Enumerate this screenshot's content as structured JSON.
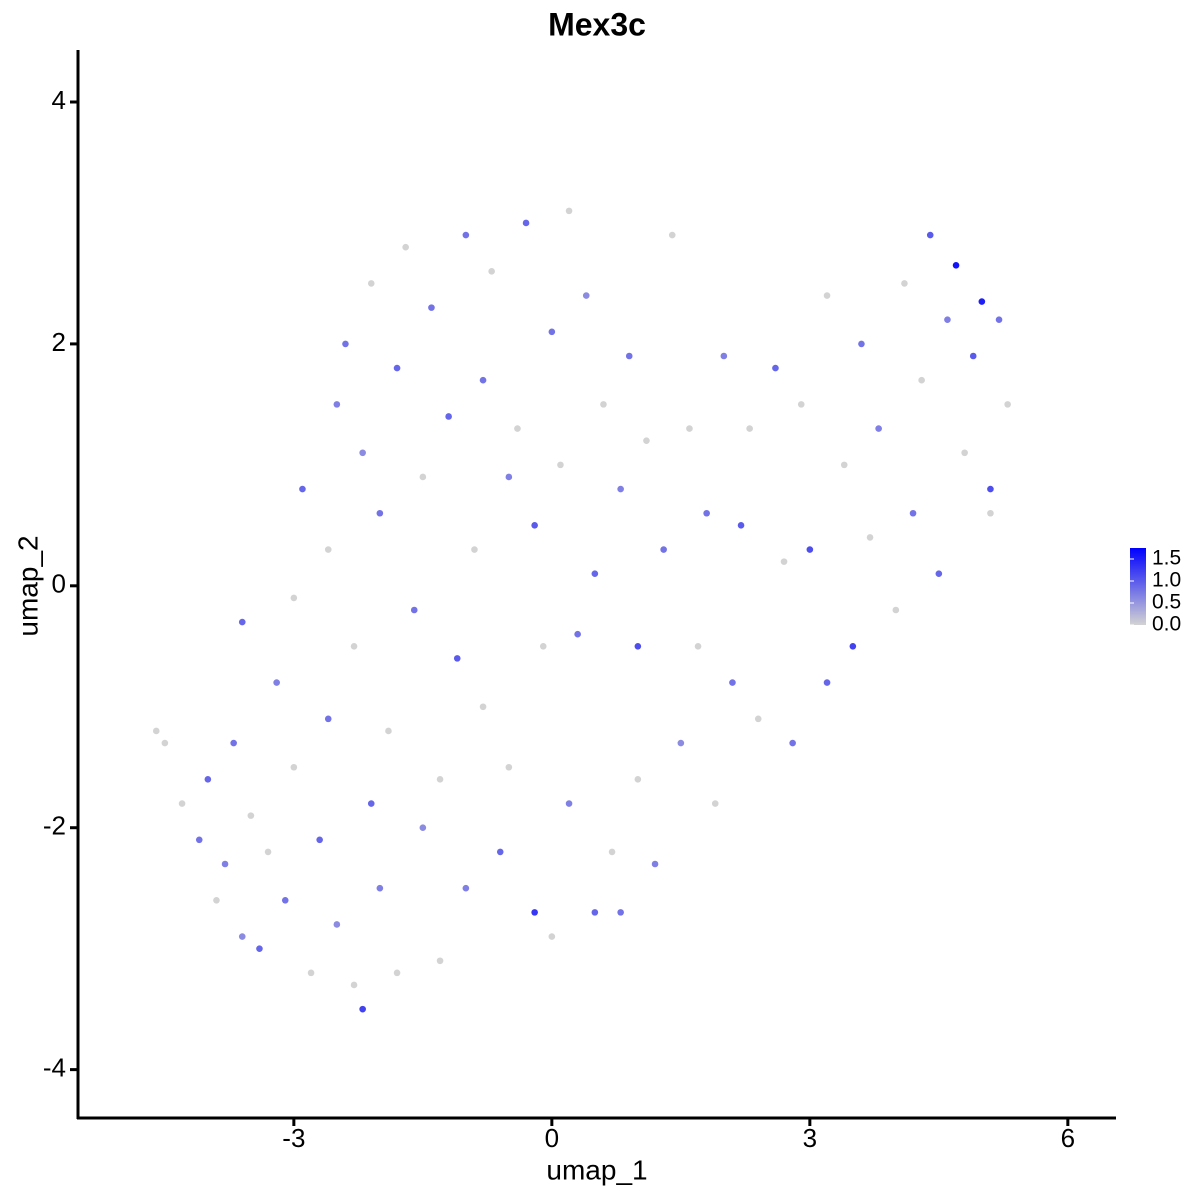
{
  "chart_data": {
    "type": "scatter",
    "title": "Mex3c",
    "x_label": "umap_1",
    "y_label": "umap_2",
    "xlim": [
      -5.51,
      6.56
    ],
    "ylim": [
      -4.4,
      4.43
    ],
    "xticks": [
      -3,
      0,
      3,
      6
    ],
    "yticks": [
      -4,
      -2,
      0,
      2,
      4
    ],
    "colorbar": {
      "lim": [
        0,
        1.75
      ],
      "ticks": [
        {
          "value": 0,
          "label": "0.0"
        },
        {
          "value": 0.5,
          "label": "0.5"
        },
        {
          "value": 1,
          "label": "1.0"
        },
        {
          "value": 1.5,
          "label": "1.5"
        }
      ],
      "colors": [
        "#d3d3d3",
        "#0000ff"
      ]
    },
    "x": [
      -4.6,
      -4.5,
      -4.3,
      -4.1,
      -4.0,
      -3.9,
      -3.8,
      -3.7,
      -3.6,
      -3.6,
      -3.5,
      -3.4,
      -3.3,
      -3.2,
      -3.1,
      -3.0,
      -3.0,
      -2.9,
      -2.8,
      -2.7,
      -2.6,
      -2.6,
      -2.5,
      -2.5,
      -2.4,
      -2.3,
      -2.3,
      -2.2,
      -2.2,
      -2.1,
      -2.1,
      -2.0,
      -2.0,
      -1.9,
      -1.8,
      -1.8,
      -1.7,
      -1.6,
      -1.5,
      -1.5,
      -1.4,
      -1.3,
      -1.3,
      -1.2,
      -1.1,
      -1.0,
      -1.0,
      -0.9,
      -0.8,
      -0.8,
      -0.7,
      -0.6,
      -0.5,
      -0.5,
      -0.4,
      -0.3,
      -0.2,
      -0.2,
      -0.1,
      0.0,
      0.0,
      0.1,
      0.2,
      0.2,
      0.3,
      0.4,
      0.5,
      0.5,
      0.6,
      0.7,
      0.8,
      0.8,
      0.9,
      1.0,
      1.0,
      1.1,
      1.2,
      1.3,
      1.4,
      1.5,
      1.6,
      1.7,
      1.8,
      1.9,
      2.0,
      2.1,
      2.2,
      2.3,
      2.4,
      2.6,
      2.7,
      2.8,
      2.9,
      3.0,
      3.2,
      3.2,
      3.4,
      3.5,
      3.6,
      3.7,
      3.8,
      4.0,
      4.1,
      4.2,
      4.3,
      4.4,
      4.5,
      4.6,
      4.7,
      4.8,
      4.9,
      5.0,
      5.1,
      5.2,
      5.3,
      5.1
    ],
    "y": [
      -1.2,
      -1.3,
      -1.8,
      -2.1,
      -1.6,
      -2.6,
      -2.3,
      -1.3,
      -0.3,
      -2.9,
      -1.9,
      -3.0,
      -2.2,
      -0.8,
      -2.6,
      -1.5,
      -0.1,
      0.8,
      -3.2,
      -2.1,
      -1.1,
      0.3,
      1.5,
      -2.8,
      2.0,
      -0.5,
      -3.3,
      -3.5,
      1.1,
      -1.8,
      2.5,
      0.6,
      -2.5,
      -1.2,
      1.8,
      -3.2,
      2.8,
      -0.2,
      -2.0,
      0.9,
      2.3,
      -1.6,
      -3.1,
      1.4,
      -0.6,
      2.9,
      -2.5,
      0.3,
      1.7,
      -1.0,
      2.6,
      -2.2,
      0.9,
      -1.5,
      1.3,
      3.0,
      -2.7,
      0.5,
      -0.5,
      2.1,
      -2.9,
      1.0,
      -1.8,
      3.1,
      -0.4,
      2.4,
      -2.7,
      0.1,
      1.5,
      -2.2,
      -2.7,
      0.8,
      1.9,
      -0.5,
      -1.6,
      1.2,
      -2.3,
      0.3,
      2.9,
      -1.3,
      1.3,
      -0.5,
      0.6,
      -1.8,
      1.9,
      -0.8,
      0.5,
      1.3,
      -1.1,
      1.8,
      0.2,
      -1.3,
      1.5,
      0.3,
      -0.8,
      2.4,
      1.0,
      -0.5,
      2.0,
      0.4,
      1.3,
      -0.2,
      2.5,
      0.6,
      1.7,
      2.9,
      0.1,
      2.2,
      2.65,
      1.1,
      1.9,
      2.35,
      0.8,
      2.2,
      1.5,
      0.6
    ],
    "values": [
      0,
      0,
      0,
      0.8,
      0.9,
      0,
      0.7,
      0.8,
      0.9,
      0.6,
      0,
      0.9,
      0,
      0.7,
      0.8,
      0,
      0,
      0.9,
      0,
      0.9,
      0.8,
      0,
      0.7,
      0.6,
      0.8,
      0,
      0,
      1.2,
      0.6,
      0.9,
      0,
      0.8,
      0.7,
      0,
      0.9,
      0,
      0,
      0.8,
      0.6,
      0,
      0.8,
      0,
      0,
      0.9,
      1.0,
      0.8,
      0.7,
      0,
      0.8,
      0,
      0,
      0.9,
      0.7,
      0,
      0,
      0.9,
      1.3,
      1.0,
      0,
      0.8,
      0,
      0,
      0.7,
      0,
      0.8,
      0.6,
      0.9,
      0.9,
      0,
      0,
      0.8,
      0.7,
      0.8,
      1.1,
      0,
      0,
      0.7,
      0.8,
      0,
      0.6,
      0,
      0,
      0.8,
      0,
      0.7,
      0.8,
      1.0,
      0,
      0,
      0.9,
      0,
      0.8,
      0,
      1.1,
      0.9,
      0,
      0,
      1.2,
      0.8,
      0,
      0.7,
      0,
      0,
      0.8,
      0,
      1.0,
      0.9,
      0.7,
      1.6,
      0,
      1.0,
      1.5,
      1.1,
      0.8,
      0,
      0
    ]
  }
}
